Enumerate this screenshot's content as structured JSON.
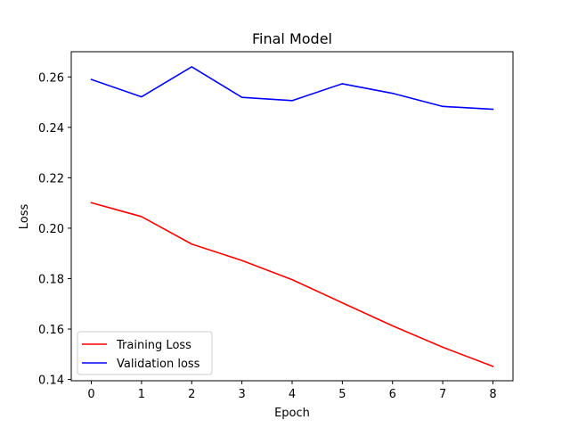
{
  "chart_data": {
    "type": "line",
    "title": "Final Model",
    "xlabel": "Epoch",
    "ylabel": "Loss",
    "x": [
      0,
      1,
      2,
      3,
      4,
      5,
      6,
      7,
      8
    ],
    "xlim": [
      -0.4,
      8.4
    ],
    "ylim": [
      0.1395,
      0.27
    ],
    "xticks": [
      "0",
      "1",
      "2",
      "3",
      "4",
      "5",
      "6",
      "7",
      "8"
    ],
    "yticks": [
      "0.14",
      "0.16",
      "0.18",
      "0.20",
      "0.22",
      "0.24",
      "0.26"
    ],
    "grid": false,
    "legend": "lower-left",
    "series": [
      {
        "name": "Training Loss",
        "color": "#ff0000",
        "values": [
          0.2101,
          0.2046,
          0.1937,
          0.1872,
          0.1796,
          0.1704,
          0.1613,
          0.1528,
          0.1452
        ]
      },
      {
        "name": "Validation loss",
        "color": "#0000ff",
        "values": [
          0.259,
          0.2521,
          0.264,
          0.2519,
          0.2506,
          0.2573,
          0.2535,
          0.2483,
          0.2472
        ]
      }
    ]
  }
}
